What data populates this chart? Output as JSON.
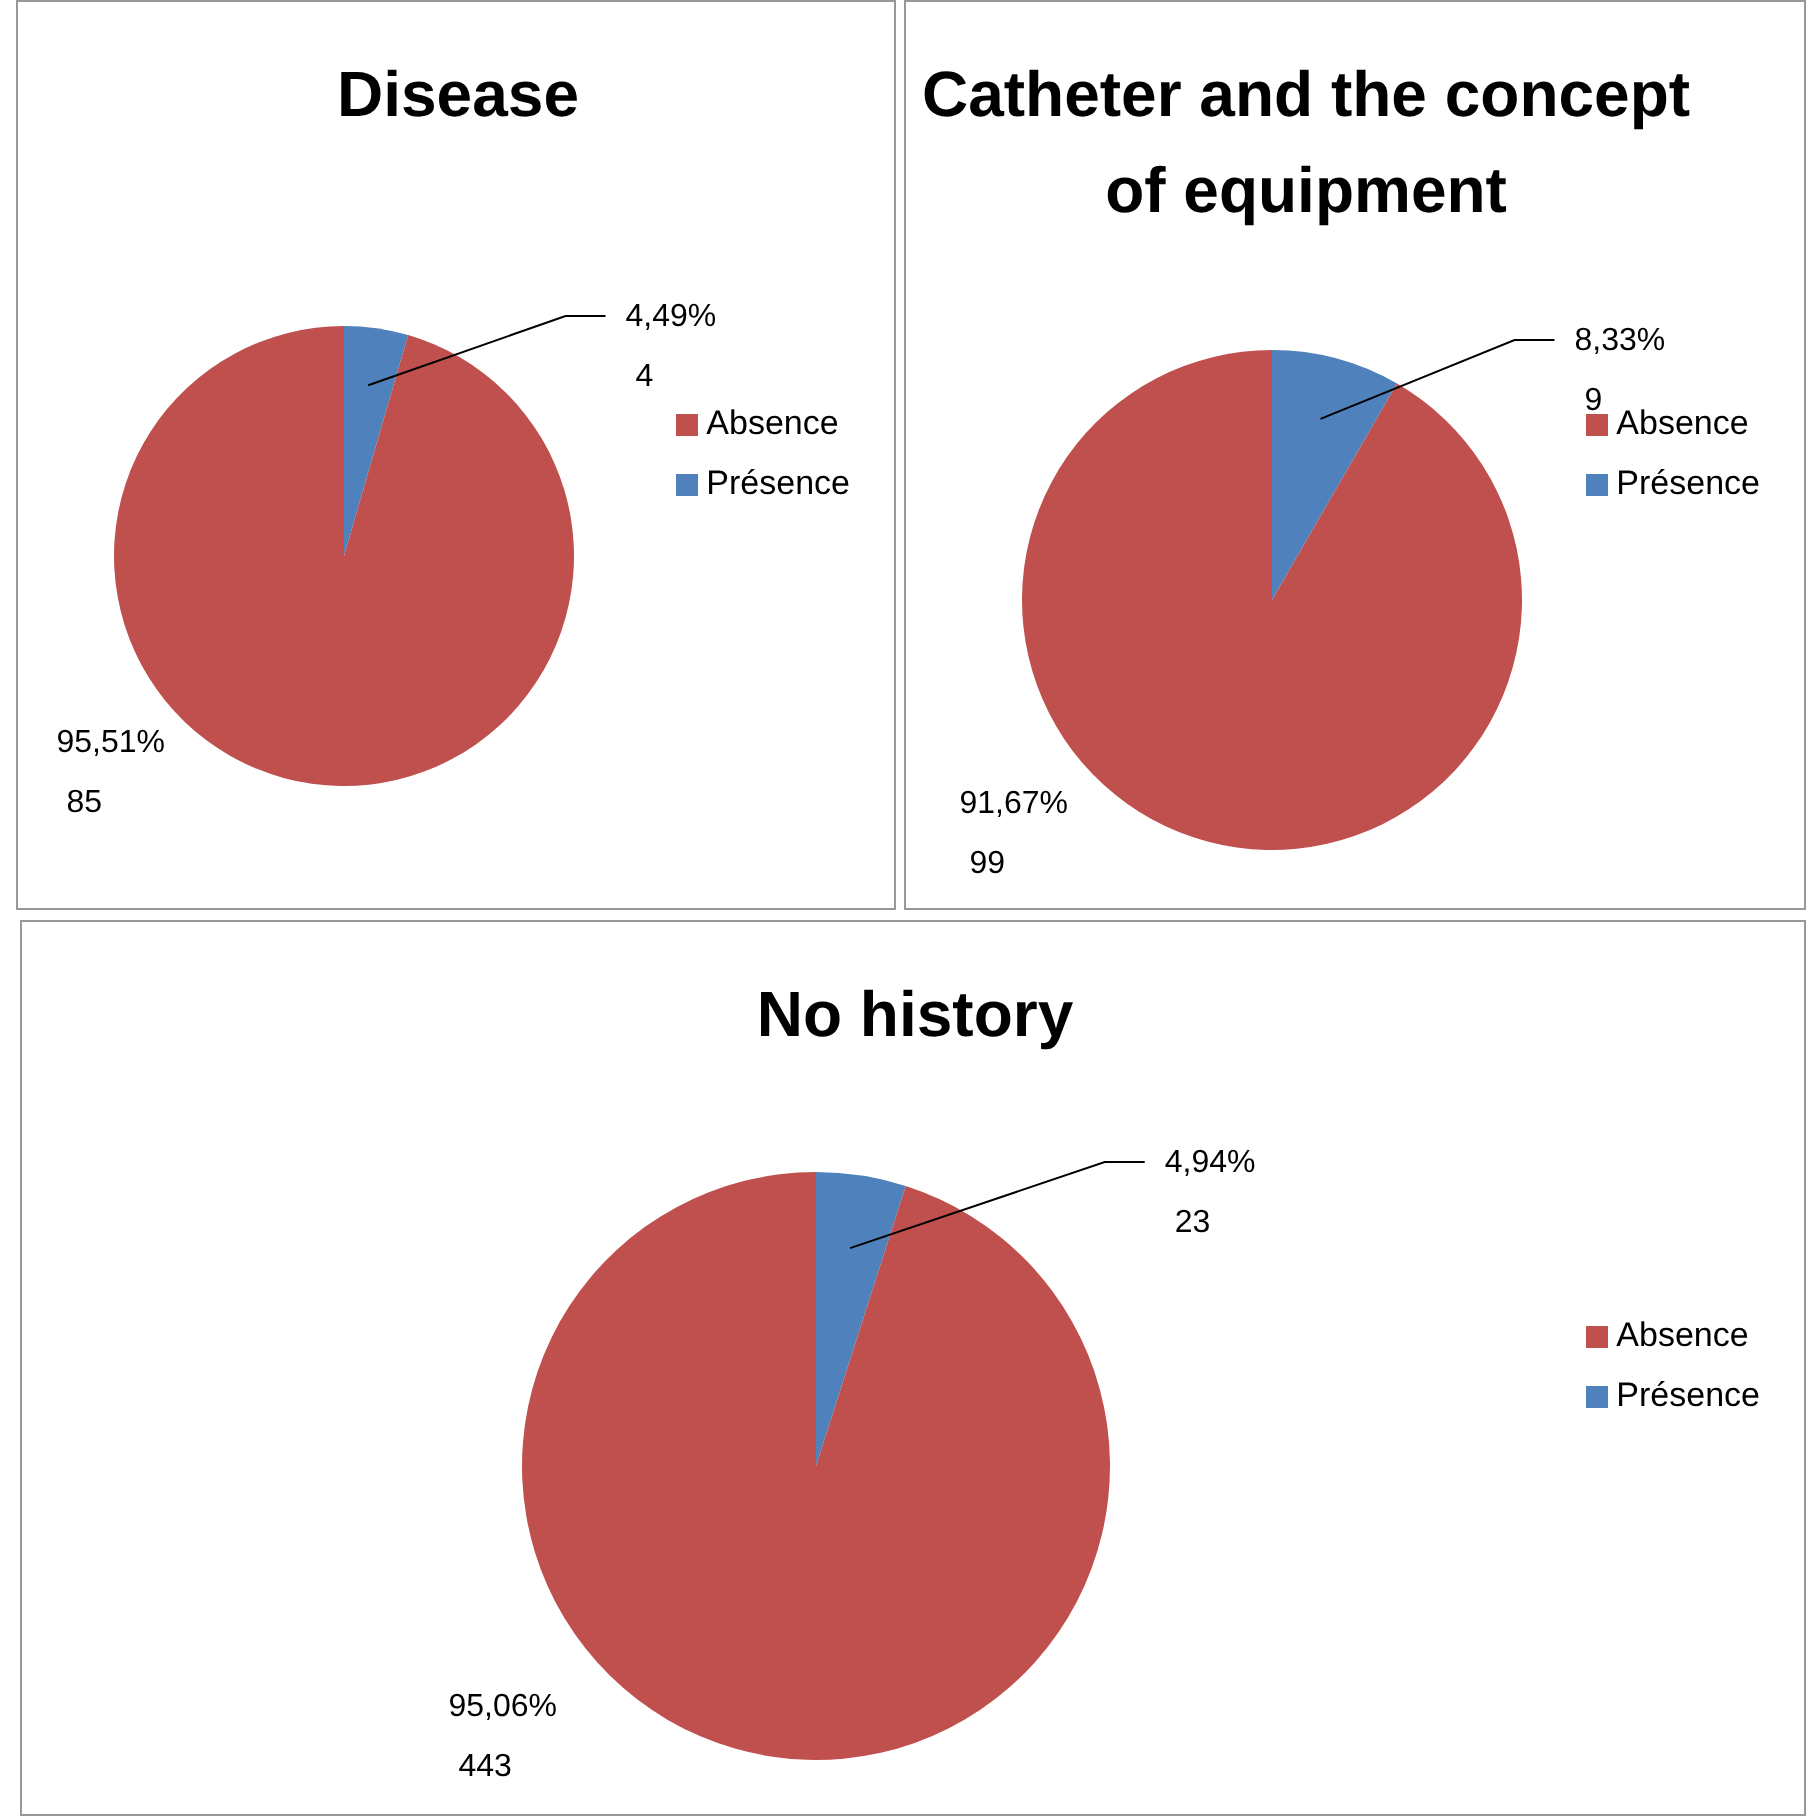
{
  "chart_data": [
    {
      "type": "pie",
      "title": "Disease",
      "categories": [
        "Présence",
        "Absence"
      ],
      "values": [
        4,
        85
      ],
      "colors": [
        "#4f81bd",
        "#c0504d"
      ],
      "value_labels": [
        "4,49%\n4",
        "95,51%\n85"
      ],
      "legend": "right"
    },
    {
      "type": "pie",
      "title": "Catheter and the concept of equipment",
      "categories": [
        "Présence",
        "Absence"
      ],
      "values": [
        9,
        99
      ],
      "colors": [
        "#4f81bd",
        "#c0504d"
      ],
      "value_labels": [
        "8,33%\n9",
        "91,67%\n99"
      ],
      "legend": "right"
    },
    {
      "type": "pie",
      "title": "No history",
      "categories": [
        "Présence",
        "Absence"
      ],
      "values": [
        23,
        443
      ],
      "colors": [
        "#4f81bd",
        "#c0504d"
      ],
      "value_labels": [
        "4,94%\n23",
        "95,06%\n443"
      ],
      "legend": "right"
    }
  ]
}
